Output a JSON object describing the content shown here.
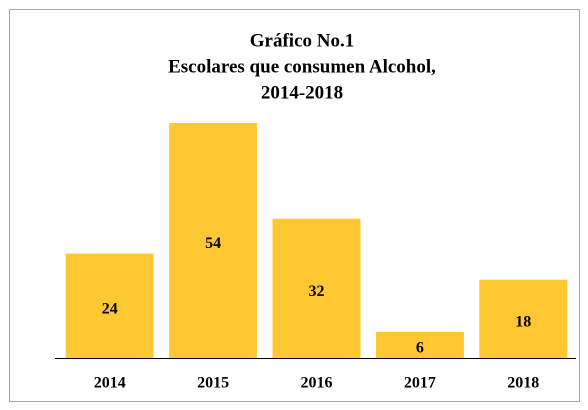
{
  "chart_data": {
    "type": "bar",
    "title": [
      "Gráfico No.1",
      "Escolares que consumen Alcohol,",
      "2014-2018"
    ],
    "categories": [
      "2014",
      "2015",
      "2016",
      "2017",
      "2018"
    ],
    "values": [
      24,
      54,
      32,
      6,
      18
    ],
    "color": "#ffc832"
  }
}
